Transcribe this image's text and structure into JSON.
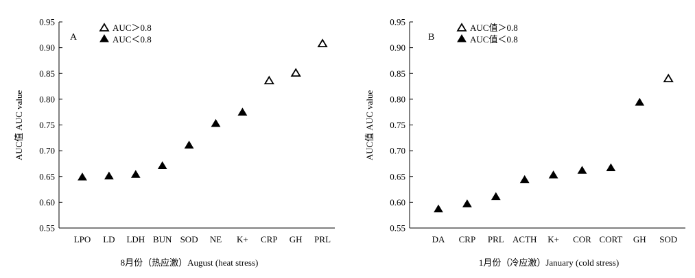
{
  "chart_data": [
    {
      "type": "scatter",
      "panel_label": "A",
      "xlabel": "8月份（热应激）August (heat stress)",
      "ylabel": "AUC值 AUC value",
      "ylim": [
        0.55,
        0.95
      ],
      "yticks": [
        0.55,
        0.6,
        0.65,
        0.7,
        0.75,
        0.8,
        0.85,
        0.9,
        0.95
      ],
      "ytick_labels": [
        "0.55",
        "0.60",
        "0.65",
        "0.70",
        "0.75",
        "0.80",
        "0.85",
        "0.90",
        "0.95"
      ],
      "grid": false,
      "legend_position": "top-left",
      "legend": [
        {
          "label": "AUC＞0.8",
          "marker": "open-triangle"
        },
        {
          "label": "AUC＜0.8",
          "marker": "filled-triangle"
        }
      ],
      "categories": [
        "LPO",
        "LD",
        "LDH",
        "BUN",
        "SOD",
        "NE",
        "K+",
        "CRP",
        "GH",
        "PRL"
      ],
      "values": [
        0.649,
        0.651,
        0.654,
        0.671,
        0.711,
        0.753,
        0.775,
        0.836,
        0.851,
        0.908
      ]
    },
    {
      "type": "scatter",
      "panel_label": "B",
      "xlabel": "1月份（冷应激）January (cold stress)",
      "ylabel": "AUC值 AUC value",
      "ylim": [
        0.55,
        0.95
      ],
      "yticks": [
        0.55,
        0.6,
        0.65,
        0.7,
        0.75,
        0.8,
        0.85,
        0.9,
        0.95
      ],
      "ytick_labels": [
        "0.55",
        "0.60",
        "0.65",
        "0.70",
        "0.75",
        "0.80",
        "0.85",
        "0.90",
        "0.95"
      ],
      "grid": false,
      "legend_position": "top-left",
      "legend": [
        {
          "label": "AUC值＞0.8",
          "marker": "open-triangle"
        },
        {
          "label": "AUC值＜0.8",
          "marker": "filled-triangle"
        }
      ],
      "categories": [
        "DA",
        "CRP",
        "PRL",
        "ACTH",
        "K+",
        "COR",
        "CORT",
        "GH",
        "SOD"
      ],
      "values": [
        0.587,
        0.597,
        0.611,
        0.644,
        0.653,
        0.662,
        0.667,
        0.794,
        0.84
      ]
    }
  ]
}
